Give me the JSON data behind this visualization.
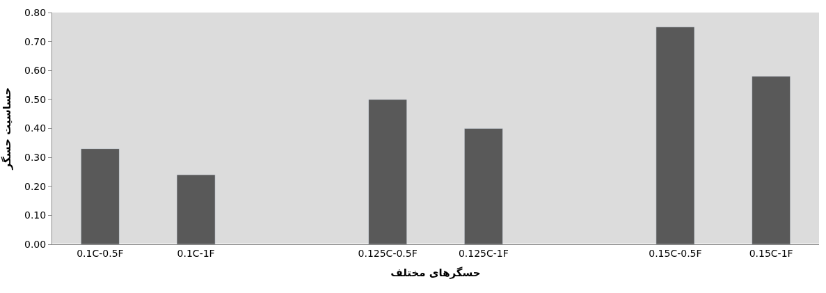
{
  "chart_data": {
    "type": "bar",
    "xlabel": "حسگرهای مختلف",
    "ylabel": "حساسیت حسگر",
    "categories": [
      "0.1C-0.5F",
      "0.1C-1F",
      null,
      "0.125C-0.5F",
      "0.125C-1F",
      null,
      "0.15C-0.5F",
      "0.15C-1F"
    ],
    "values": [
      0.33,
      0.24,
      null,
      0.5,
      0.4,
      null,
      0.75,
      0.58
    ],
    "color": "#595959",
    "ylim": [
      0,
      0.8
    ],
    "yticks": [
      {
        "value": 0,
        "label": "0.00"
      },
      {
        "value": 0.1,
        "label": "0.10"
      },
      {
        "value": 0.2,
        "label": "0.20"
      },
      {
        "value": 0.3,
        "label": "0.30"
      },
      {
        "value": 0.4,
        "label": "0.40"
      },
      {
        "value": 0.5,
        "label": "0.50"
      },
      {
        "value": 0.6,
        "label": "0.60"
      },
      {
        "value": 0.7,
        "label": "0.70"
      },
      {
        "value": 0.8,
        "label": "0.80"
      }
    ],
    "grid": false,
    "legend": false
  }
}
